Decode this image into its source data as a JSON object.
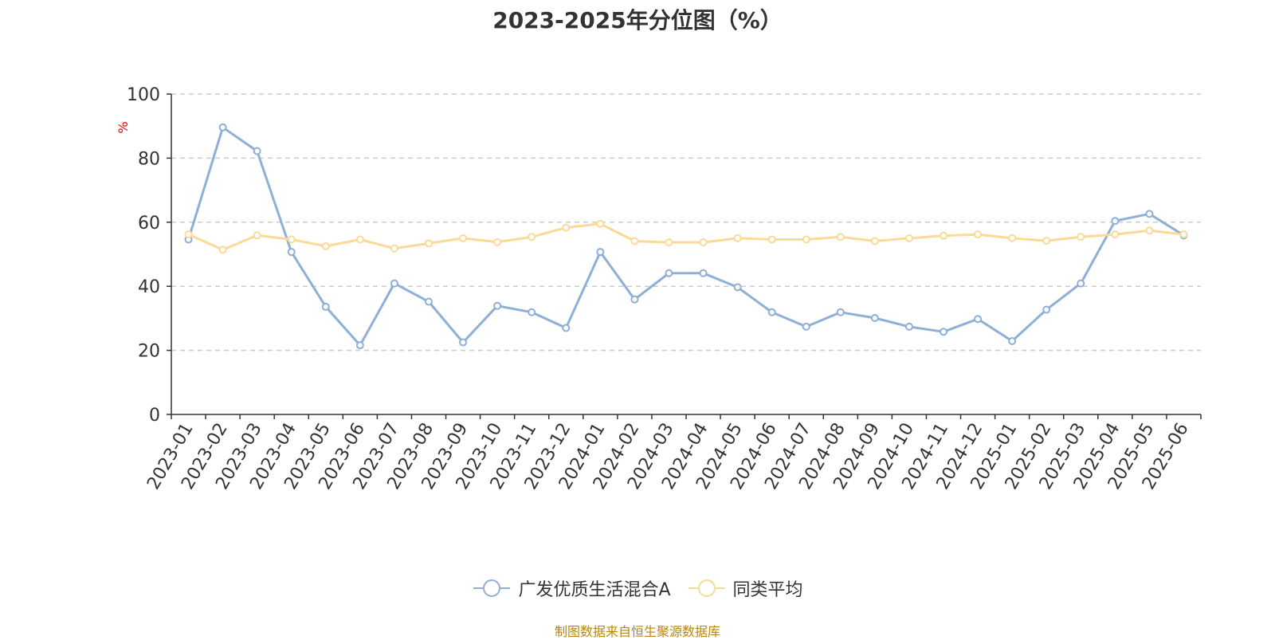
{
  "chart_data": {
    "type": "line",
    "title": "2023-2025年分位图（%）",
    "ylabel": "%",
    "ylim": [
      0,
      100
    ],
    "yticks": [
      0,
      20,
      40,
      60,
      80,
      100
    ],
    "grid": true,
    "legend_position": "bottom",
    "categories": [
      "2023-01",
      "2023-02",
      "2023-03",
      "2023-04",
      "2023-05",
      "2023-06",
      "2023-07",
      "2023-08",
      "2023-09",
      "2023-10",
      "2023-11",
      "2023-12",
      "2024-01",
      "2024-02",
      "2024-03",
      "2024-04",
      "2024-05",
      "2024-06",
      "2024-07",
      "2024-08",
      "2024-09",
      "2024-10",
      "2024-11",
      "2024-12",
      "2025-01",
      "2025-02",
      "2025-03",
      "2025-04",
      "2025-05",
      "2025-06"
    ],
    "series": [
      {
        "name": "广发优质生活混合A",
        "color": "#8eafd8",
        "values": [
          54.6,
          89.6,
          82.2,
          50.7,
          33.6,
          21.6,
          40.9,
          35.2,
          22.5,
          33.9,
          31.9,
          27.0,
          50.7,
          35.9,
          44.1,
          44.1,
          39.7,
          31.9,
          27.4,
          31.9,
          30.1,
          27.4,
          25.8,
          29.8,
          22.9,
          32.7,
          40.9,
          60.4,
          62.6,
          55.9
        ]
      },
      {
        "name": "同类平均",
        "color": "#fcd996",
        "values": [
          56.2,
          51.4,
          55.9,
          54.6,
          52.5,
          54.6,
          51.8,
          53.4,
          55.0,
          53.8,
          55.4,
          58.3,
          59.5,
          54.1,
          53.7,
          53.7,
          55.0,
          54.6,
          54.6,
          55.4,
          54.1,
          55.0,
          55.8,
          56.2,
          55.0,
          54.2,
          55.4,
          56.2,
          57.4,
          56.2
        ]
      }
    ]
  },
  "footer": {
    "source": "制图数据来自恒生聚源数据库"
  }
}
